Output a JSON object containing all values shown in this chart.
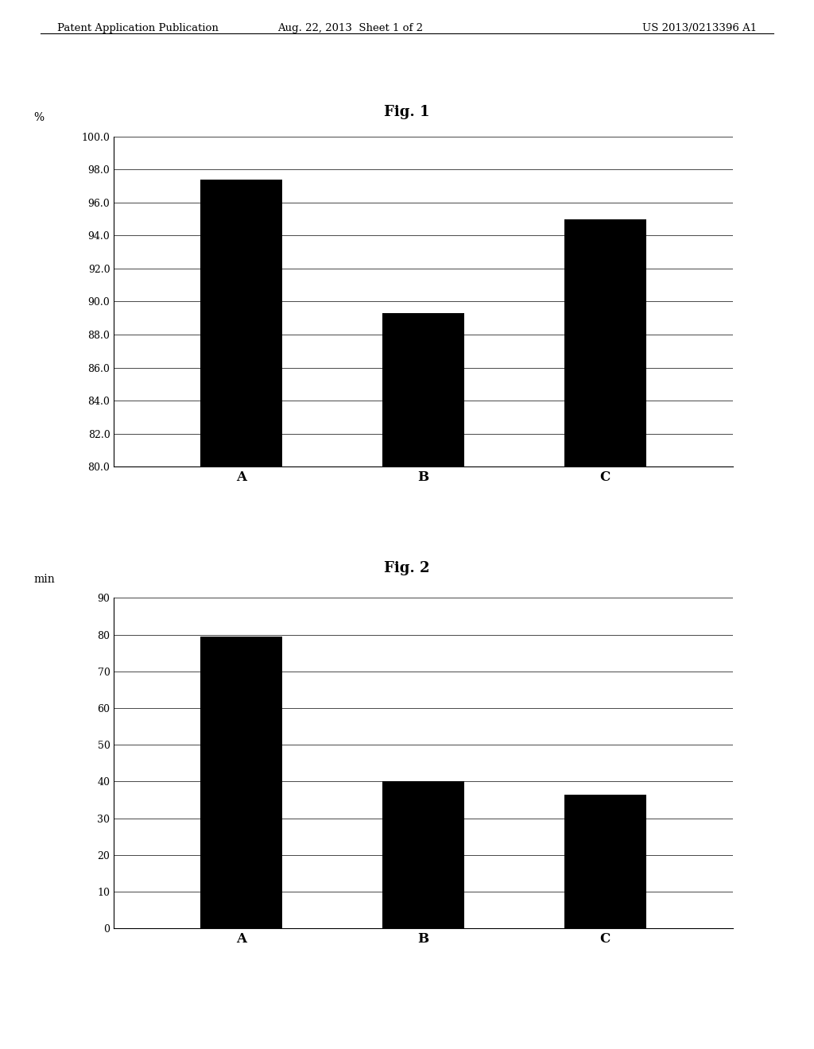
{
  "header_left": "Patent Application Publication",
  "header_mid": "Aug. 22, 2013  Sheet 1 of 2",
  "header_right": "US 2013/0213396 A1",
  "fig1": {
    "title": "Fig. 1",
    "categories": [
      "A",
      "B",
      "C"
    ],
    "values": [
      97.4,
      89.3,
      95.0
    ],
    "ylabel": "%",
    "ylim": [
      80.0,
      100.0
    ],
    "yticks": [
      80.0,
      82.0,
      84.0,
      86.0,
      88.0,
      90.0,
      92.0,
      94.0,
      96.0,
      98.0,
      100.0
    ],
    "bar_color": "#000000",
    "bar_width": 0.45
  },
  "fig2": {
    "title": "Fig. 2",
    "categories": [
      "A",
      "B",
      "C"
    ],
    "values": [
      79.5,
      40.0,
      36.5
    ],
    "ylabel": "min",
    "ylim": [
      0,
      90
    ],
    "yticks": [
      0,
      10,
      20,
      30,
      40,
      50,
      60,
      70,
      80,
      90
    ],
    "bar_color": "#000000",
    "bar_width": 0.45
  },
  "background_color": "#ffffff",
  "text_color": "#000000",
  "header_fontsize": 9.5,
  "title_fontsize": 13,
  "tick_fontsize": 9,
  "ylabel_fontsize": 10,
  "xlabel_fontsize": 12
}
